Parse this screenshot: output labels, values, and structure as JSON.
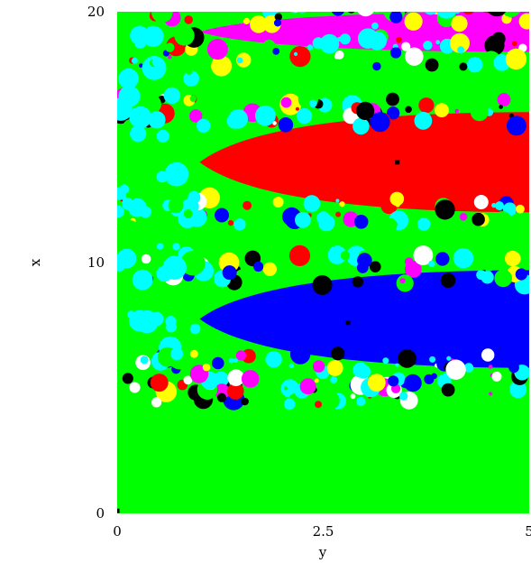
{
  "chart_data": {
    "type": "heatmap",
    "title": "",
    "xlabel": "y",
    "ylabel": "x",
    "xlim": [
      0,
      5
    ],
    "ylim": [
      0,
      20
    ],
    "xticks": [
      {
        "value": 0,
        "label": "0"
      },
      {
        "value": 2.5,
        "label": "2.5"
      },
      {
        "value": 5,
        "label": "5"
      }
    ],
    "yticks": [
      {
        "value": 0,
        "label": "0"
      },
      {
        "value": 10,
        "label": "10"
      },
      {
        "value": 20,
        "label": "20"
      }
    ],
    "grid": false,
    "legend": "none",
    "colors": {
      "green": "#00ff00",
      "blue": "#0000ff",
      "red": "#ff0000",
      "magenta": "#ff00ff",
      "cyan": "#00ffff",
      "yellow": "#ffff00",
      "black": "#000000",
      "white": "#ffffff"
    },
    "basins": [
      {
        "color": "green",
        "y_from": 0,
        "y_to": 5,
        "x_from": 0,
        "x_to": 4.9
      },
      {
        "color": "blue",
        "y_from": 1.0,
        "y_to": 5,
        "x_from": 5.8,
        "x_to": 9.7
      },
      {
        "color": "red",
        "y_from": 1.0,
        "y_to": 5,
        "x_from": 12.0,
        "x_to": 16.0
      },
      {
        "color": "magenta",
        "y_from": 1.0,
        "y_to": 5,
        "x_from": 18.4,
        "x_to": 20
      }
    ],
    "marked_points": [
      {
        "y": 0.0,
        "x": 0.1
      },
      {
        "y": 2.8,
        "x": 7.6
      },
      {
        "y": 3.4,
        "x": 14.0
      }
    ]
  }
}
